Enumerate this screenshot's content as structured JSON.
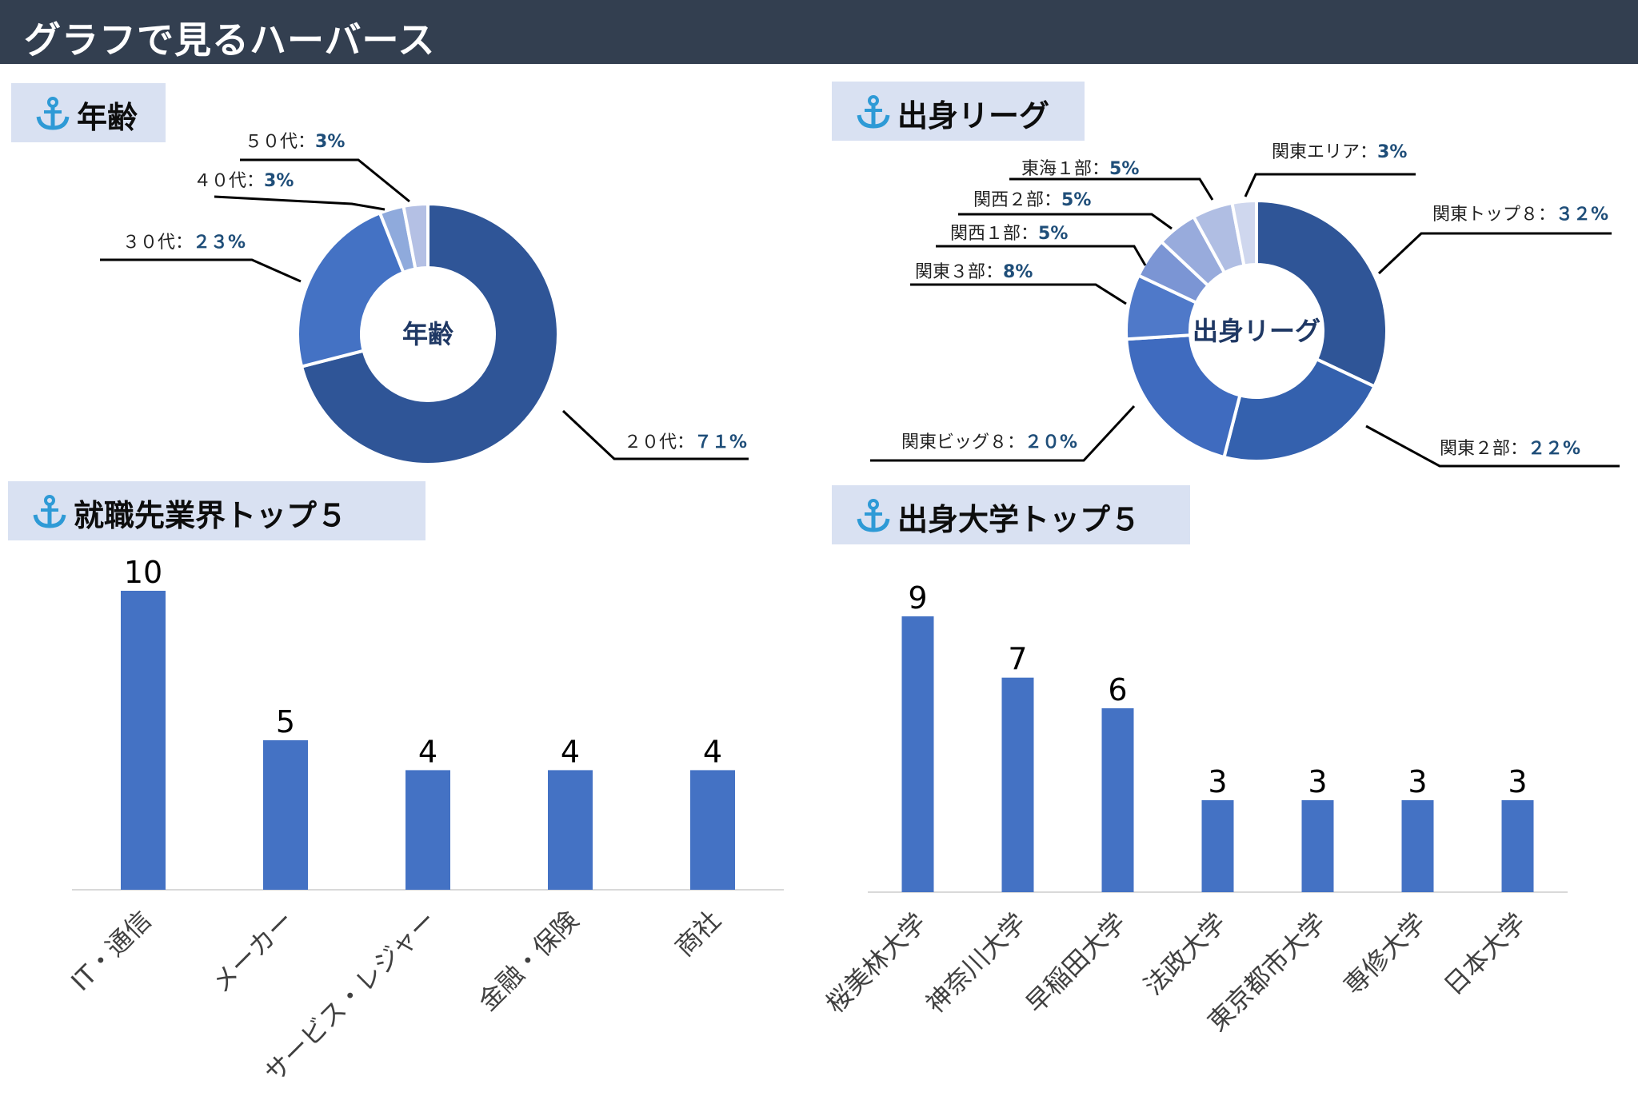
{
  "header": {
    "title": "グラフで見るハーバース"
  },
  "sections": {
    "age": "年齢",
    "league": "出身リーグ",
    "industry": "就職先業界トップ５",
    "university": "出身大学トップ５"
  },
  "colors": {
    "header_bg": "#333f50",
    "label_bg": "#d9e1f2",
    "anchor": "#2e9ad6",
    "bar": "#4472c4"
  },
  "icons": {
    "section": "anchor-icon"
  },
  "chart_data": [
    {
      "type": "pie",
      "title": "年齢",
      "categories": [
        "２０代",
        "３０代",
        "４０代",
        "５０代"
      ],
      "values": [
        71,
        23,
        3,
        3
      ],
      "labels_pct": [
        "７１%",
        "２３%",
        "3%",
        "3%"
      ],
      "colors": [
        "#2f5597",
        "#4472c4",
        "#8faadc",
        "#b4c0e4"
      ]
    },
    {
      "type": "pie",
      "title": "出身リーグ",
      "categories": [
        "関東トップ８",
        "関東２部",
        "関東ビッグ８",
        "関東３部",
        "関西１部",
        "関西２部",
        "東海１部",
        "関東エリア"
      ],
      "values": [
        32,
        22,
        20,
        8,
        5,
        5,
        5,
        3
      ],
      "labels_pct": [
        "３２%",
        "２２%",
        "２０%",
        "8%",
        "5%",
        "5%",
        "5%",
        "3%"
      ],
      "colors": [
        "#2f5597",
        "#3461ae",
        "#3f6bbf",
        "#4f79c9",
        "#7b95d4",
        "#98abdc",
        "#b0bee3",
        "#cfd7ee"
      ]
    },
    {
      "type": "bar",
      "title": "就職先業界トップ５",
      "categories": [
        "IT・通信",
        "メーカー",
        "サービス・レジャー",
        "金融・保険",
        "商社"
      ],
      "values": [
        10,
        5,
        4,
        4,
        4
      ],
      "ylim": [
        0,
        10
      ]
    },
    {
      "type": "bar",
      "title": "出身大学トップ５",
      "categories": [
        "桜美林大学",
        "神奈川大学",
        "早稲田大学",
        "法政大学",
        "東京都市大学",
        "専修大学",
        "日本大学"
      ],
      "values": [
        9,
        7,
        6,
        3,
        3,
        3,
        3
      ],
      "ylim": [
        0,
        9
      ]
    }
  ]
}
